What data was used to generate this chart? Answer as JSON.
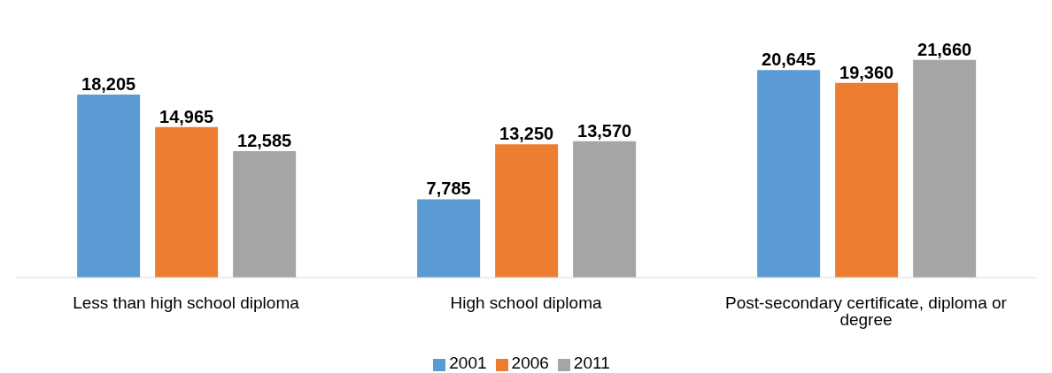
{
  "chart_data": {
    "type": "bar",
    "categories": [
      "Less than high school diploma",
      "High school diploma",
      "Post-secondary certificate, diploma or degree"
    ],
    "series": [
      {
        "name": "2001",
        "color": "#5b9bd5",
        "values": [
          18205,
          7785,
          20645
        ],
        "value_labels": [
          "18,205",
          "7,785",
          "20,645"
        ]
      },
      {
        "name": "2006",
        "color": "#ed7d31",
        "values": [
          14965,
          13250,
          19360
        ],
        "value_labels": [
          "14,965",
          "13,250",
          "19,360"
        ]
      },
      {
        "name": "2011",
        "color": "#a5a5a5",
        "values": [
          12585,
          13570,
          21660
        ],
        "value_labels": [
          "12,585",
          "13,570",
          "21,660"
        ]
      }
    ],
    "legend": "bottom",
    "grid": false
  }
}
